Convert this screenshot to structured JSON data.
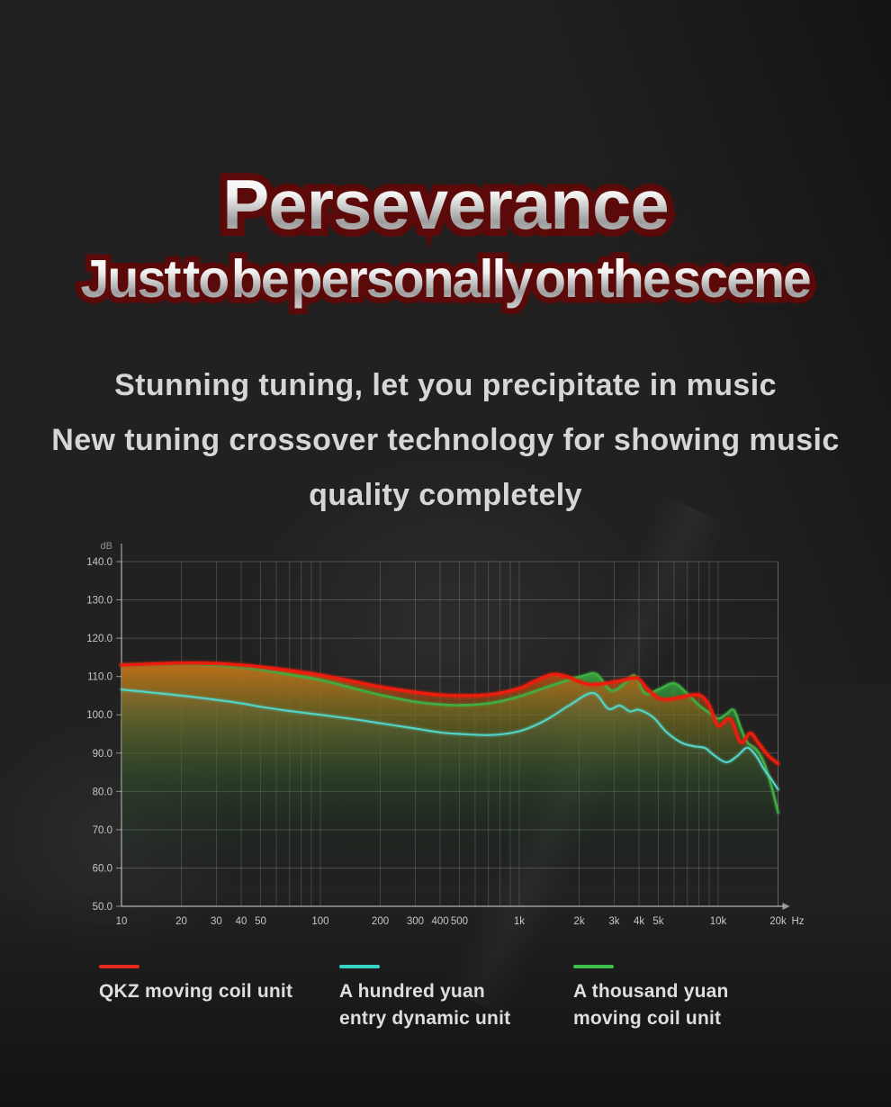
{
  "hero": {
    "title": "Perseverance",
    "subtitle": "Just to be personally on the scene",
    "outline_color": "#5c0909"
  },
  "description": {
    "line1": "Stunning tuning, let you precipitate in music",
    "line2": "New tuning crossover technology for showing music",
    "line3": "quality completely"
  },
  "chart_data": {
    "type": "line",
    "x_scale": "log",
    "x_unit": "Hz",
    "y_unit": "dB",
    "x_range": [
      10,
      20000
    ],
    "y_range": [
      50,
      140
    ],
    "grid": true,
    "y_ticks": [
      140,
      130,
      120,
      110,
      100,
      90,
      80,
      70,
      60,
      50
    ],
    "x_ticks": [
      {
        "f": 10,
        "label": "10"
      },
      {
        "f": 20,
        "label": "20"
      },
      {
        "f": 30,
        "label": "30"
      },
      {
        "f": 40,
        "label": "40"
      },
      {
        "f": 50,
        "label": "50"
      },
      {
        "f": 100,
        "label": "100"
      },
      {
        "f": 200,
        "label": "200"
      },
      {
        "f": 300,
        "label": "300"
      },
      {
        "f": 400,
        "label": "400"
      },
      {
        "f": 500,
        "label": "500"
      },
      {
        "f": 1000,
        "label": "1k"
      },
      {
        "f": 2000,
        "label": "2k"
      },
      {
        "f": 3000,
        "label": "3k"
      },
      {
        "f": 4000,
        "label": "4k"
      },
      {
        "f": 5000,
        "label": "5k"
      },
      {
        "f": 10000,
        "label": "10k"
      },
      {
        "f": 20000,
        "label": "20k"
      }
    ],
    "series": [
      {
        "name": "QKZ moving coil unit",
        "stroke": "#ed1c0c",
        "stroke_width": 3.4,
        "glow": "rgba(237,28,12,0.28)",
        "fill_stops": [
          [
            0,
            "rgba(225,95,15,0.80)"
          ],
          [
            0.22,
            "rgba(172,72,14,0.42)"
          ],
          [
            0.48,
            "rgba(115,52,12,0.10)"
          ],
          [
            0.7,
            "rgba(115,52,12,0)"
          ]
        ],
        "points": [
          [
            10,
            113.0
          ],
          [
            15,
            113.3
          ],
          [
            20,
            113.5
          ],
          [
            30,
            113.4
          ],
          [
            40,
            113.0
          ],
          [
            50,
            112.5
          ],
          [
            70,
            111.6
          ],
          [
            100,
            110.4
          ],
          [
            150,
            108.6
          ],
          [
            200,
            107.3
          ],
          [
            300,
            105.9
          ],
          [
            400,
            105.2
          ],
          [
            500,
            105.0
          ],
          [
            650,
            105.1
          ],
          [
            800,
            105.7
          ],
          [
            1000,
            106.9
          ],
          [
            1200,
            108.8
          ],
          [
            1450,
            110.5
          ],
          [
            1700,
            110.1
          ],
          [
            2200,
            108.0
          ],
          [
            2700,
            108.2
          ],
          [
            3300,
            109.0
          ],
          [
            3900,
            109.6
          ],
          [
            4400,
            106.8
          ],
          [
            5000,
            104.4
          ],
          [
            5600,
            104.0
          ],
          [
            6500,
            104.6
          ],
          [
            8000,
            105.2
          ],
          [
            9000,
            102.5
          ],
          [
            10000,
            97.2
          ],
          [
            11500,
            98.9
          ],
          [
            13000,
            92.8
          ],
          [
            14500,
            95.2
          ],
          [
            16000,
            92.5
          ],
          [
            18000,
            89.2
          ],
          [
            20000,
            87.3
          ]
        ]
      },
      {
        "name": "A hundred yuan entry dynamic unit",
        "stroke": "#52d4c6",
        "stroke_width": 2.2,
        "glow": "rgba(82,212,198,0.18)",
        "fill_stops": [
          [
            0,
            "rgba(48,158,135,0.30)"
          ],
          [
            0.3,
            "rgba(40,130,110,0.12)"
          ],
          [
            0.6,
            "rgba(40,130,110,0)"
          ]
        ],
        "points": [
          [
            10,
            106.6
          ],
          [
            20,
            105.0
          ],
          [
            30,
            103.9
          ],
          [
            40,
            103.0
          ],
          [
            50,
            102.1
          ],
          [
            70,
            101.0
          ],
          [
            100,
            100.0
          ],
          [
            150,
            98.8
          ],
          [
            200,
            97.8
          ],
          [
            300,
            96.4
          ],
          [
            400,
            95.4
          ],
          [
            500,
            95.0
          ],
          [
            700,
            94.7
          ],
          [
            900,
            95.2
          ],
          [
            1100,
            96.4
          ],
          [
            1400,
            99.0
          ],
          [
            1800,
            102.6
          ],
          [
            2350,
            105.7
          ],
          [
            2800,
            101.6
          ],
          [
            3200,
            102.4
          ],
          [
            3600,
            100.9
          ],
          [
            4000,
            101.3
          ],
          [
            4700,
            99.4
          ],
          [
            5500,
            95.5
          ],
          [
            6500,
            92.8
          ],
          [
            7500,
            91.8
          ],
          [
            8600,
            91.3
          ],
          [
            9500,
            89.5
          ],
          [
            11000,
            87.6
          ],
          [
            12500,
            89.3
          ],
          [
            14000,
            91.4
          ],
          [
            15500,
            89.3
          ],
          [
            17000,
            85.8
          ],
          [
            18500,
            83.2
          ],
          [
            20000,
            80.5
          ]
        ]
      },
      {
        "name": "A thousand yuan moving coil unit",
        "stroke": "#3fae42",
        "stroke_width": 2.6,
        "glow": "rgba(63,174,66,0.2)",
        "fill_stops": [
          [
            0,
            "rgba(60,175,64,0.92)"
          ],
          [
            0.25,
            "rgba(42,140,52,0.55)"
          ],
          [
            0.55,
            "rgba(25,95,40,0.22)"
          ],
          [
            0.85,
            "rgba(15,60,25,0.04)"
          ],
          [
            1,
            "rgba(15,60,25,0)"
          ]
        ],
        "points": [
          [
            10,
            112.9
          ],
          [
            20,
            113.2
          ],
          [
            30,
            112.9
          ],
          [
            40,
            112.4
          ],
          [
            50,
            111.8
          ],
          [
            70,
            110.5
          ],
          [
            100,
            109.1
          ],
          [
            150,
            106.8
          ],
          [
            200,
            105.2
          ],
          [
            300,
            103.4
          ],
          [
            400,
            102.7
          ],
          [
            500,
            102.5
          ],
          [
            650,
            102.8
          ],
          [
            800,
            103.5
          ],
          [
            1000,
            104.8
          ],
          [
            1300,
            106.8
          ],
          [
            1700,
            108.8
          ],
          [
            2100,
            110.2
          ],
          [
            2450,
            110.6
          ],
          [
            2900,
            106.3
          ],
          [
            3400,
            108.3
          ],
          [
            3800,
            110.2
          ],
          [
            4300,
            105.6
          ],
          [
            5000,
            106.6
          ],
          [
            6000,
            108.2
          ],
          [
            7000,
            105.5
          ],
          [
            8000,
            102.5
          ],
          [
            9000,
            100.6
          ],
          [
            10000,
            99.0
          ],
          [
            11000,
            100.2
          ],
          [
            12000,
            101.2
          ],
          [
            13000,
            96.5
          ],
          [
            14000,
            92.8
          ],
          [
            15500,
            91.0
          ],
          [
            17000,
            87.5
          ],
          [
            18500,
            81.5
          ],
          [
            20000,
            74.5
          ]
        ]
      }
    ]
  },
  "legend": {
    "items": [
      {
        "color": "#e42a1d",
        "lines": [
          "QKZ moving coil unit"
        ]
      },
      {
        "color": "#38d2c6",
        "lines": [
          "A hundred yuan",
          "entry dynamic unit"
        ]
      },
      {
        "color": "#3ec04f",
        "lines": [
          "A thousand yuan",
          "moving coil unit"
        ]
      }
    ]
  }
}
